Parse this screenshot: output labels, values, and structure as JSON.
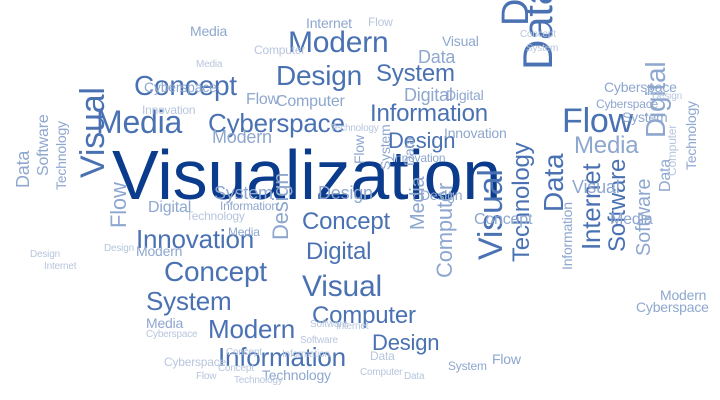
{
  "palette": {
    "background": "#ffffff",
    "dark": "#0b3b8c",
    "mid": "#4a72b3",
    "light": "#8ea7cf",
    "pale": "#b7c6dd"
  },
  "words": [
    {
      "id": "w-visualization",
      "text": "Visualization",
      "tone": "dark"
    },
    {
      "id": "w-modern-top",
      "text": "Modern",
      "tone": "mid"
    },
    {
      "id": "w-design-top",
      "text": "Design",
      "tone": "mid"
    },
    {
      "id": "w-system-top",
      "text": "System",
      "tone": "mid"
    },
    {
      "id": "w-data-vertical",
      "text": "Data",
      "tone": "mid"
    },
    {
      "id": "w-data-vertical-2",
      "text": "Data",
      "tone": "mid"
    },
    {
      "id": "w-concept-top",
      "text": "Concept",
      "tone": "mid"
    },
    {
      "id": "w-media-left",
      "text": "Media",
      "tone": "mid"
    },
    {
      "id": "w-cyberspace-left",
      "text": "Cyberspace",
      "tone": "mid"
    },
    {
      "id": "w-information-top",
      "text": "Information",
      "tone": "mid"
    },
    {
      "id": "w-flow-right",
      "text": "Flow",
      "tone": "mid"
    },
    {
      "id": "w-design-mid",
      "text": "Design",
      "tone": "mid"
    },
    {
      "id": "w-media-right",
      "text": "Media",
      "tone": "light"
    },
    {
      "id": "w-digital-right",
      "text": "Digital",
      "tone": "light"
    },
    {
      "id": "w-visual-left",
      "text": "Visual",
      "tone": "mid"
    },
    {
      "id": "w-innovation",
      "text": "Innovation",
      "tone": "mid"
    },
    {
      "id": "w-concept-mid",
      "text": "Concept",
      "tone": "mid"
    },
    {
      "id": "w-digital-mid",
      "text": "Digital",
      "tone": "mid"
    },
    {
      "id": "w-concept-low",
      "text": "Concept",
      "tone": "mid"
    },
    {
      "id": "w-system-low",
      "text": "System",
      "tone": "mid"
    },
    {
      "id": "w-visual-low",
      "text": "Visual",
      "tone": "mid"
    },
    {
      "id": "w-computer-low",
      "text": "Computer",
      "tone": "mid"
    },
    {
      "id": "w-modern-low",
      "text": "Modern",
      "tone": "mid"
    },
    {
      "id": "w-information-low",
      "text": "Information",
      "tone": "mid"
    },
    {
      "id": "w-design-low",
      "text": "Design",
      "tone": "mid"
    },
    {
      "id": "w-visual-vertical",
      "text": "Visual",
      "tone": "mid"
    },
    {
      "id": "w-technology-vertical",
      "text": "Technology",
      "tone": "mid"
    },
    {
      "id": "w-data-vertical-right",
      "text": "Data",
      "tone": "mid"
    },
    {
      "id": "w-internet-vertical",
      "text": "Internet",
      "tone": "mid"
    },
    {
      "id": "w-software-vertical",
      "text": "Software",
      "tone": "mid"
    },
    {
      "id": "w-computer-vertical",
      "text": "Computer",
      "tone": "light"
    },
    {
      "id": "w-media-vertical",
      "text": "Media",
      "tone": "light"
    },
    {
      "id": "w-design-vertical",
      "text": "Design",
      "tone": "light"
    },
    {
      "id": "w-flow-vertical-left",
      "text": "Flow",
      "tone": "light"
    },
    {
      "id": "w-data-far-left",
      "text": "Data",
      "tone": "light"
    },
    {
      "id": "w-software-far-left",
      "text": "Software",
      "tone": "light"
    },
    {
      "id": "w-technology-far-left",
      "text": "Technology",
      "tone": "light"
    },
    {
      "id": "w-digital-top",
      "text": "Digital",
      "tone": "light"
    },
    {
      "id": "w-computer-top",
      "text": "Computer",
      "tone": "light"
    },
    {
      "id": "w-flow-top",
      "text": "Flow",
      "tone": "light"
    },
    {
      "id": "w-modern-mid",
      "text": "Modern",
      "tone": "light"
    },
    {
      "id": "w-innovation-mid",
      "text": "Innovation",
      "tone": "light"
    },
    {
      "id": "w-cyberspace-right",
      "text": "Cyberspace",
      "tone": "light"
    },
    {
      "id": "w-media-small",
      "text": "Media",
      "tone": "light"
    },
    {
      "id": "w-cyberspace-small",
      "text": "Cyberspace",
      "tone": "light"
    },
    {
      "id": "w-technology-small",
      "text": "Technology",
      "tone": "light"
    },
    {
      "id": "w-internet-top",
      "text": "Internet",
      "tone": "light"
    },
    {
      "id": "w-flow-top-right",
      "text": "Flow",
      "tone": "pale"
    },
    {
      "id": "w-visual-top",
      "text": "Visual",
      "tone": "light"
    },
    {
      "id": "w-data-top",
      "text": "Data",
      "tone": "light"
    },
    {
      "id": "w-system-small",
      "text": "System",
      "tone": "light"
    },
    {
      "id": "w-design-small",
      "text": "Design",
      "tone": "light"
    },
    {
      "id": "w-digital-small",
      "text": "Digital",
      "tone": "light"
    },
    {
      "id": "w-system-right",
      "text": "System",
      "tone": "light"
    },
    {
      "id": "w-media-right-small",
      "text": "Media",
      "tone": "light"
    },
    {
      "id": "w-data-right-small",
      "text": "Data",
      "tone": "light"
    },
    {
      "id": "w-software-right",
      "text": "Software",
      "tone": "light"
    },
    {
      "id": "w-cyberspace-bottom-right",
      "text": "Cyberspace",
      "tone": "light"
    },
    {
      "id": "w-modern-bottom-right",
      "text": "Modern",
      "tone": "light"
    },
    {
      "id": "w-flow-bottom",
      "text": "Flow",
      "tone": "light"
    },
    {
      "id": "w-system-bottom",
      "text": "System",
      "tone": "light"
    },
    {
      "id": "w-concept-bottom",
      "text": "Concept",
      "tone": "pale"
    },
    {
      "id": "w-technology-bottom",
      "text": "Technology",
      "tone": "pale"
    },
    {
      "id": "w-data-bottom",
      "text": "Data",
      "tone": "pale"
    },
    {
      "id": "w-modern-small-left",
      "text": "Modern",
      "tone": "light"
    },
    {
      "id": "w-design-small-left",
      "text": "Design",
      "tone": "pale"
    },
    {
      "id": "w-media-small-left",
      "text": "Media",
      "tone": "light"
    },
    {
      "id": "w-cyberspace-small-left",
      "text": "Cyberspace",
      "tone": "pale"
    },
    {
      "id": "w-technology-mid",
      "text": "Technology",
      "tone": "pale"
    },
    {
      "id": "w-software-small",
      "text": "Software",
      "tone": "pale"
    },
    {
      "id": "w-internet-small",
      "text": "Internet",
      "tone": "pale"
    },
    {
      "id": "w-innovation-small",
      "text": "Innovation",
      "tone": "light"
    },
    {
      "id": "w-design-mid-small",
      "text": "Design",
      "tone": "light"
    },
    {
      "id": "w-system-vertical-small",
      "text": "System",
      "tone": "light"
    },
    {
      "id": "w-flow-vertical-small",
      "text": "Flow",
      "tone": "light"
    },
    {
      "id": "w-data-vertical-small",
      "text": "Data",
      "tone": "light"
    },
    {
      "id": "w-visual-small-right",
      "text": "Visual",
      "tone": "light"
    },
    {
      "id": "w-information-right-small",
      "text": "Information",
      "tone": "light"
    },
    {
      "id": "w-concept-right-small",
      "text": "Concept",
      "tone": "light"
    },
    {
      "id": "w-information-mid-small",
      "text": "Information",
      "tone": "light"
    },
    {
      "id": "w-media-mid-small",
      "text": "Media",
      "tone": "light"
    },
    {
      "id": "w-digital-mid-small",
      "text": "Digital",
      "tone": "light"
    },
    {
      "id": "w-concept-top-right",
      "text": "Concept",
      "tone": "pale"
    },
    {
      "id": "w-system-top-right",
      "text": "System",
      "tone": "pale"
    },
    {
      "id": "w-cyberspace-top-right",
      "text": "Cyberspace",
      "tone": "light"
    },
    {
      "id": "w-design-top-right",
      "text": "Design",
      "tone": "pale"
    },
    {
      "id": "w-technology-top-mid",
      "text": "Technology",
      "tone": "pale"
    },
    {
      "id": "w-innovation-top",
      "text": "Innovation",
      "tone": "pale"
    },
    {
      "id": "w-computer-right-small",
      "text": "Computer",
      "tone": "pale"
    },
    {
      "id": "w-concept-small-mid",
      "text": "Concept",
      "tone": "pale"
    },
    {
      "id": "w-software-small-mid",
      "text": "Software",
      "tone": "pale"
    },
    {
      "id": "w-cyberspace-small-mid",
      "text": "Cyberspace",
      "tone": "pale"
    },
    {
      "id": "w-information-small-mid",
      "text": "Information",
      "tone": "pale"
    },
    {
      "id": "w-computer-small-bottom",
      "text": "Computer",
      "tone": "pale"
    },
    {
      "id": "w-flow-small-bottom",
      "text": "Flow",
      "tone": "pale"
    },
    {
      "id": "w-data-small-bottom",
      "text": "Data",
      "tone": "pale"
    },
    {
      "id": "w-computer-small-top",
      "text": "Computer",
      "tone": "pale"
    },
    {
      "id": "w-media-top-small",
      "text": "Media",
      "tone": "pale"
    },
    {
      "id": "w-design-far-left",
      "text": "Design",
      "tone": "pale"
    },
    {
      "id": "w-internet-far-left",
      "text": "Internet",
      "tone": "pale"
    },
    {
      "id": "w-technology-far-right",
      "text": "Technology",
      "tone": "light"
    }
  ]
}
